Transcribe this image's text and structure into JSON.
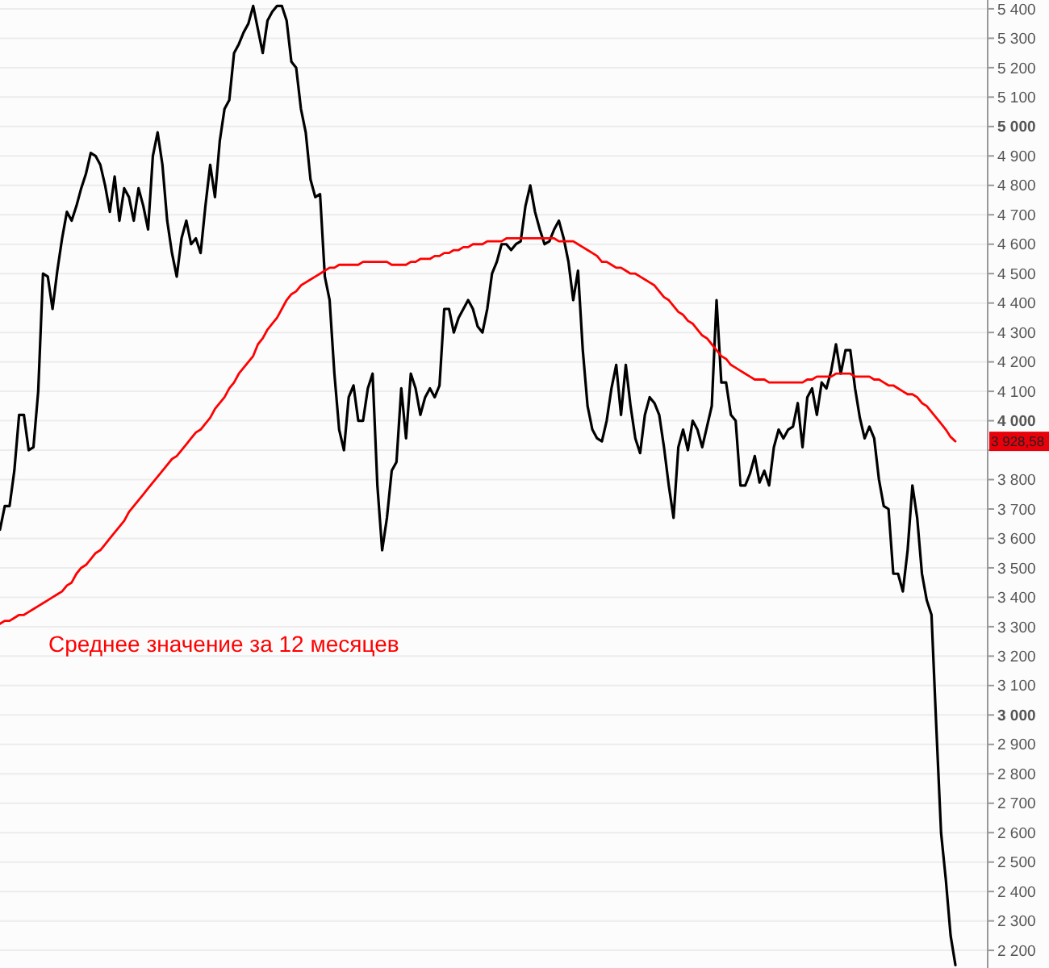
{
  "chart_data": {
    "type": "line",
    "ylim": [
      2140,
      5430
    ],
    "tick_labels": "y",
    "grid": "y",
    "legend": false,
    "marker": "none",
    "line_style": "solid",
    "categories": [
      null,
      null,
      null,
      null,
      null,
      null,
      null,
      null,
      null,
      null,
      null,
      null,
      null,
      null,
      null,
      null,
      null,
      null,
      null,
      null,
      null,
      null,
      null,
      null,
      null,
      null,
      null,
      null,
      null,
      null,
      null,
      null,
      null,
      null,
      null,
      null,
      null,
      null,
      null,
      null,
      null,
      null,
      null,
      null,
      null,
      null,
      null,
      null,
      null,
      null,
      null,
      null,
      null,
      null,
      null,
      null,
      null,
      null,
      null,
      null,
      null,
      null,
      null,
      null,
      null,
      null,
      null,
      null,
      null,
      null,
      null,
      null,
      null,
      null,
      null,
      null,
      null,
      null,
      null,
      null,
      null,
      null,
      null,
      null,
      null,
      null,
      null,
      null,
      null,
      null,
      null,
      null,
      null,
      null,
      null,
      null,
      null,
      null,
      null,
      null,
      null,
      null,
      null,
      null,
      null,
      null,
      null,
      null,
      null,
      null,
      null,
      null,
      null,
      null,
      null,
      null,
      null,
      null,
      null,
      null,
      null,
      null,
      null,
      null,
      null,
      null,
      null,
      null,
      null,
      null,
      null,
      null,
      null,
      null,
      null,
      null,
      null,
      null,
      null,
      null,
      null,
      null,
      null,
      null,
      null,
      null,
      null,
      null,
      null,
      null,
      null,
      null,
      null,
      null,
      null,
      null,
      null,
      null,
      null,
      null,
      null,
      null,
      null,
      null,
      null,
      null,
      null,
      null,
      null,
      null,
      null,
      null,
      null,
      null,
      null,
      null,
      null,
      null,
      null,
      null,
      null,
      null,
      null,
      null,
      null,
      null,
      null,
      null,
      null,
      null,
      null,
      null,
      null,
      null,
      null,
      null,
      null,
      null,
      null,
      null,
      null
    ],
    "yticks": [
      {
        "value": 2200,
        "label": "2 200"
      },
      {
        "value": 2300,
        "label": "2 300"
      },
      {
        "value": 2400,
        "label": "2 400"
      },
      {
        "value": 2500,
        "label": "2 500"
      },
      {
        "value": 2600,
        "label": "2 600"
      },
      {
        "value": 2700,
        "label": "2 700"
      },
      {
        "value": 2800,
        "label": "2 800"
      },
      {
        "value": 2900,
        "label": "2 900"
      },
      {
        "value": 3000,
        "label": "3 000"
      },
      {
        "value": 3100,
        "label": "3 100"
      },
      {
        "value": 3200,
        "label": "3 200"
      },
      {
        "value": 3300,
        "label": "3 300"
      },
      {
        "value": 3400,
        "label": "3 400"
      },
      {
        "value": 3500,
        "label": "3 500"
      },
      {
        "value": 3600,
        "label": "3 600"
      },
      {
        "value": 3700,
        "label": "3 700"
      },
      {
        "value": 3800,
        "label": "3 800"
      },
      {
        "value": 3900,
        "label": null
      },
      {
        "value": 4000,
        "label": "4 000"
      },
      {
        "value": 4100,
        "label": "4 100"
      },
      {
        "value": 4200,
        "label": "4 200"
      },
      {
        "value": 4300,
        "label": "4 300"
      },
      {
        "value": 4400,
        "label": "4 400"
      },
      {
        "value": 4500,
        "label": "4 500"
      },
      {
        "value": 4600,
        "label": "4 600"
      },
      {
        "value": 4700,
        "label": "4 700"
      },
      {
        "value": 4800,
        "label": "4 800"
      },
      {
        "value": 4900,
        "label": "4 900"
      },
      {
        "value": 5000,
        "label": "5 000"
      },
      {
        "value": 5100,
        "label": "5 100"
      },
      {
        "value": 5200,
        "label": "5 200"
      },
      {
        "value": 5300,
        "label": "5 300"
      },
      {
        "value": 5400,
        "label": "5 400"
      }
    ],
    "series": [
      {
        "color": "#000000",
        "values": [
          3630,
          3710,
          3710,
          3830,
          4020,
          4020,
          3900,
          3910,
          4100,
          4500,
          4490,
          4380,
          4510,
          4620,
          4710,
          4680,
          4730,
          4790,
          4840,
          4910,
          4900,
          4870,
          4800,
          4710,
          4830,
          4680,
          4790,
          4760,
          4680,
          4790,
          4730,
          4650,
          4900,
          4980,
          4870,
          4680,
          4570,
          4490,
          4620,
          4680,
          4600,
          4620,
          4570,
          4730,
          4870,
          4760,
          4950,
          5060,
          5090,
          5250,
          5280,
          5320,
          5350,
          5410,
          5330,
          5250,
          5360,
          5390,
          5410,
          5410,
          5360,
          5220,
          5200,
          5060,
          4980,
          4820,
          4760,
          4770,
          4490,
          4410,
          4160,
          3970,
          3900,
          4080,
          4120,
          4000,
          4000,
          4110,
          4160,
          3780,
          3560,
          3670,
          3830,
          3860,
          4110,
          3940,
          4160,
          4110,
          4020,
          4080,
          4110,
          4080,
          4120,
          4380,
          4380,
          4300,
          4350,
          4380,
          4410,
          4380,
          4320,
          4300,
          4380,
          4500,
          4540,
          4600,
          4600,
          4580,
          4600,
          4610,
          4730,
          4800,
          4710,
          4650,
          4600,
          4610,
          4650,
          4680,
          4620,
          4540,
          4410,
          4510,
          4240,
          4050,
          3970,
          3940,
          3930,
          4000,
          4110,
          4190,
          4020,
          4190,
          4050,
          3940,
          3890,
          4020,
          4080,
          4060,
          4020,
          3910,
          3780,
          3670,
          3910,
          3970,
          3900,
          4000,
          3970,
          3910,
          3980,
          4050,
          4410,
          4130,
          4130,
          4020,
          4000,
          3780,
          3780,
          3820,
          3880,
          3790,
          3830,
          3780,
          3910,
          3970,
          3940,
          3970,
          3980,
          4060,
          3910,
          4080,
          4110,
          4020,
          4130,
          4110,
          4170,
          4260,
          4160,
          4240,
          4240,
          4110,
          4010,
          3940,
          3980,
          3940,
          3800,
          3710,
          3700,
          3480,
          3480,
          3420,
          3560,
          3780,
          3670,
          3480,
          3390,
          3340,
          2960,
          2600,
          2440,
          2250,
          2150
        ]
      },
      {
        "name": "Среднее значение за 12 месяцев",
        "color": "#ff0000",
        "values": [
          3310,
          3320,
          3320,
          3330,
          3340,
          3340,
          3350,
          3360,
          3370,
          3380,
          3390,
          3400,
          3410,
          3420,
          3440,
          3450,
          3480,
          3500,
          3510,
          3530,
          3550,
          3560,
          3580,
          3600,
          3620,
          3640,
          3660,
          3690,
          3710,
          3730,
          3750,
          3770,
          3790,
          3810,
          3830,
          3850,
          3870,
          3880,
          3900,
          3920,
          3940,
          3960,
          3970,
          3990,
          4010,
          4040,
          4060,
          4080,
          4110,
          4130,
          4160,
          4180,
          4200,
          4220,
          4260,
          4280,
          4310,
          4330,
          4350,
          4380,
          4410,
          4430,
          4440,
          4460,
          4470,
          4480,
          4490,
          4500,
          4510,
          4520,
          4520,
          4530,
          4530,
          4530,
          4530,
          4530,
          4540,
          4540,
          4540,
          4540,
          4540,
          4540,
          4530,
          4530,
          4530,
          4530,
          4540,
          4540,
          4550,
          4550,
          4550,
          4560,
          4560,
          4570,
          4570,
          4580,
          4580,
          4590,
          4590,
          4600,
          4600,
          4600,
          4610,
          4610,
          4610,
          4610,
          4620,
          4620,
          4620,
          4620,
          4620,
          4620,
          4620,
          4620,
          4620,
          4620,
          4620,
          4610,
          4610,
          4610,
          4610,
          4600,
          4590,
          4580,
          4570,
          4560,
          4540,
          4540,
          4530,
          4520,
          4520,
          4510,
          4500,
          4500,
          4490,
          4480,
          4470,
          4460,
          4440,
          4420,
          4410,
          4390,
          4370,
          4360,
          4340,
          4330,
          4310,
          4290,
          4280,
          4260,
          4240,
          4220,
          4210,
          4190,
          4180,
          4170,
          4160,
          4150,
          4140,
          4140,
          4140,
          4130,
          4130,
          4130,
          4130,
          4130,
          4130,
          4130,
          4130,
          4140,
          4140,
          4150,
          4150,
          4150,
          4150,
          4160,
          4160,
          4160,
          4160,
          4150,
          4150,
          4150,
          4150,
          4140,
          4140,
          4130,
          4120,
          4120,
          4110,
          4100,
          4090,
          4090,
          4080,
          4060,
          4050,
          4030,
          4010,
          3990,
          3970,
          3945,
          3930
        ]
      }
    ],
    "annotations": [
      "3 928,58"
    ]
  }
}
